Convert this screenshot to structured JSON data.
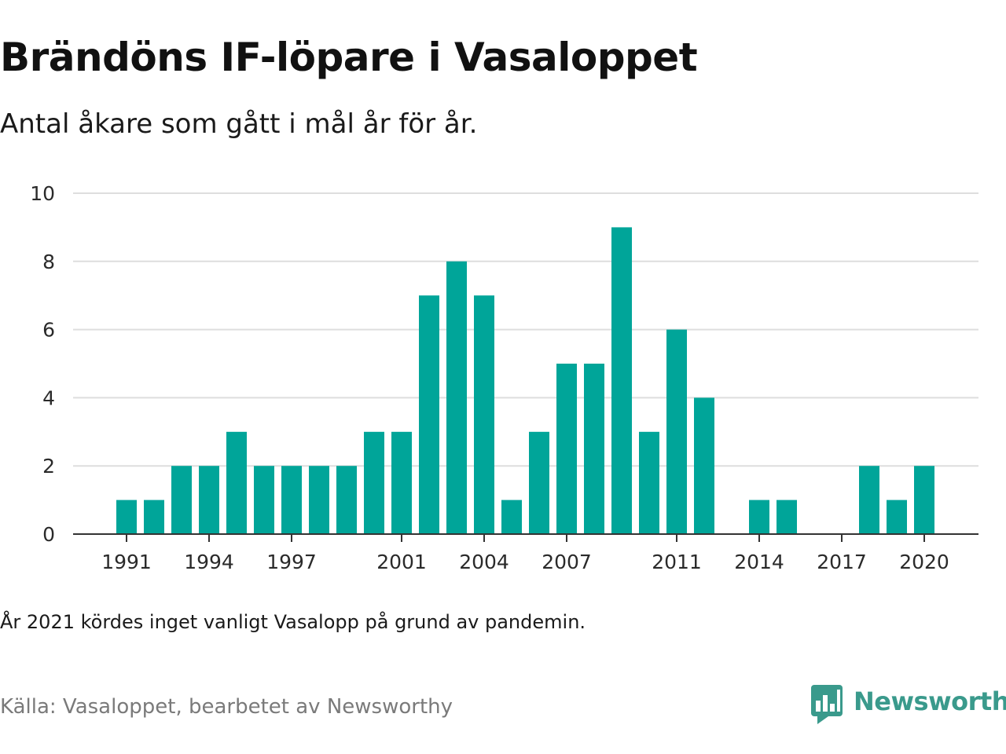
{
  "title": "Brändöns IF-löpare i Vasaloppet",
  "subtitle": "Antal åkare som gått i mål år för år.",
  "footnote": "År 2021 kördes inget vanligt Vasalopp på grund av pandemin.",
  "source": "Källa: Vasaloppet, bearbetet av Newsworthy",
  "logo": {
    "text": "Newsworthy",
    "icon": "newsworthy-logo-icon",
    "color": "#3a9a8c"
  },
  "chart_data": {
    "type": "bar",
    "title": "Brändöns IF-löpare i Vasaloppet",
    "subtitle": "Antal åkare som gått i mål år för år.",
    "x": [
      1991,
      1992,
      1993,
      1994,
      1995,
      1996,
      1997,
      1998,
      1999,
      2000,
      2001,
      2002,
      2003,
      2004,
      2005,
      2006,
      2007,
      2008,
      2009,
      2010,
      2011,
      2012,
      2013,
      2014,
      2015,
      2016,
      2017,
      2018,
      2019,
      2020
    ],
    "values": [
      1,
      1,
      2,
      2,
      3,
      2,
      2,
      2,
      2,
      3,
      3,
      7,
      8,
      7,
      1,
      3,
      5,
      5,
      9,
      3,
      6,
      4,
      0,
      1,
      1,
      0,
      0,
      2,
      1,
      2
    ],
    "x_ticks": [
      "1991",
      "1994",
      "1997",
      "2001",
      "2004",
      "2007",
      "2011",
      "2014",
      "2017",
      "2020"
    ],
    "y_ticks": [
      "0",
      "2",
      "4",
      "6",
      "8",
      "10"
    ],
    "ylim": [
      0,
      10
    ],
    "xlabel": "",
    "ylabel": "",
    "grid": true,
    "bar_color": "#00a599"
  }
}
